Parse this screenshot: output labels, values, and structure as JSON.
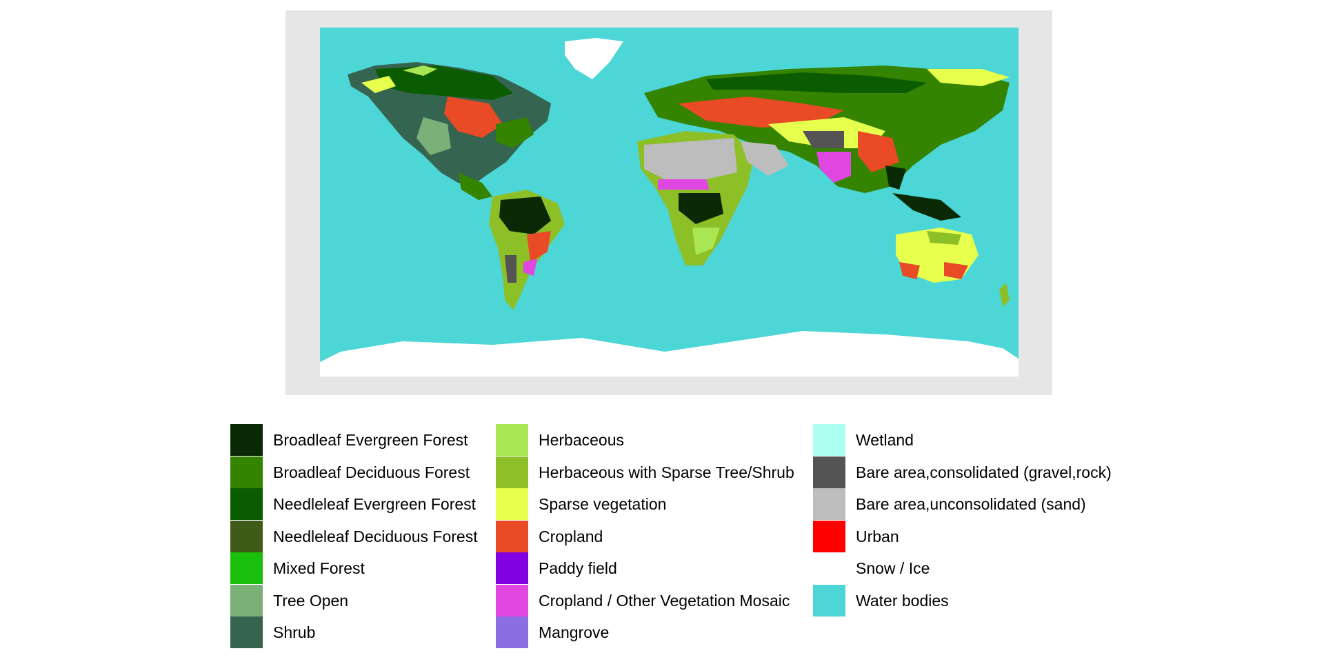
{
  "legend": {
    "columns": [
      [
        {
          "label": "Broadleaf Evergreen Forest",
          "color": "#0a2a05"
        },
        {
          "label": "Broadleaf Deciduous Forest",
          "color": "#348301"
        },
        {
          "label": "Needleleaf Evergreen Forest",
          "color": "#0b5c00"
        },
        {
          "label": "Needleleaf Deciduous Forest",
          "color": "#3f5b18"
        },
        {
          "label": "Mixed Forest",
          "color": "#1ac00b"
        },
        {
          "label": "Tree Open",
          "color": "#7bb079"
        },
        {
          "label": "Shrub",
          "color": "#356450"
        }
      ],
      [
        {
          "label": "Herbaceous",
          "color": "#a8e653"
        },
        {
          "label": "Herbaceous with Sparse Tree/Shrub",
          "color": "#8dbf27"
        },
        {
          "label": "Sparse vegetation",
          "color": "#e7ff4d"
        },
        {
          "label": "Cropland",
          "color": "#e84b26"
        },
        {
          "label": "Paddy field",
          "color": "#8000e0"
        },
        {
          "label": "Cropland / Other Vegetation Mosaic",
          "color": "#e046e0"
        },
        {
          "label": "Mangrove",
          "color": "#8b6ee0"
        }
      ],
      [
        {
          "label": "Wetland",
          "color": "#aafff0"
        },
        {
          "label": "Bare area,consolidated (gravel,rock)",
          "color": "#545454"
        },
        {
          "label": "Bare area,unconsolidated (sand)",
          "color": "#bdbdbd"
        },
        {
          "label": "Urban",
          "color": "#ff0000"
        },
        {
          "label": "Snow / Ice",
          "color": "#ffffff"
        },
        {
          "label": "Water bodies",
          "color": "#4dd6d6"
        }
      ]
    ]
  },
  "map": {
    "background_color": "#4dd6d6",
    "panel_color": "#e6e6e6"
  }
}
